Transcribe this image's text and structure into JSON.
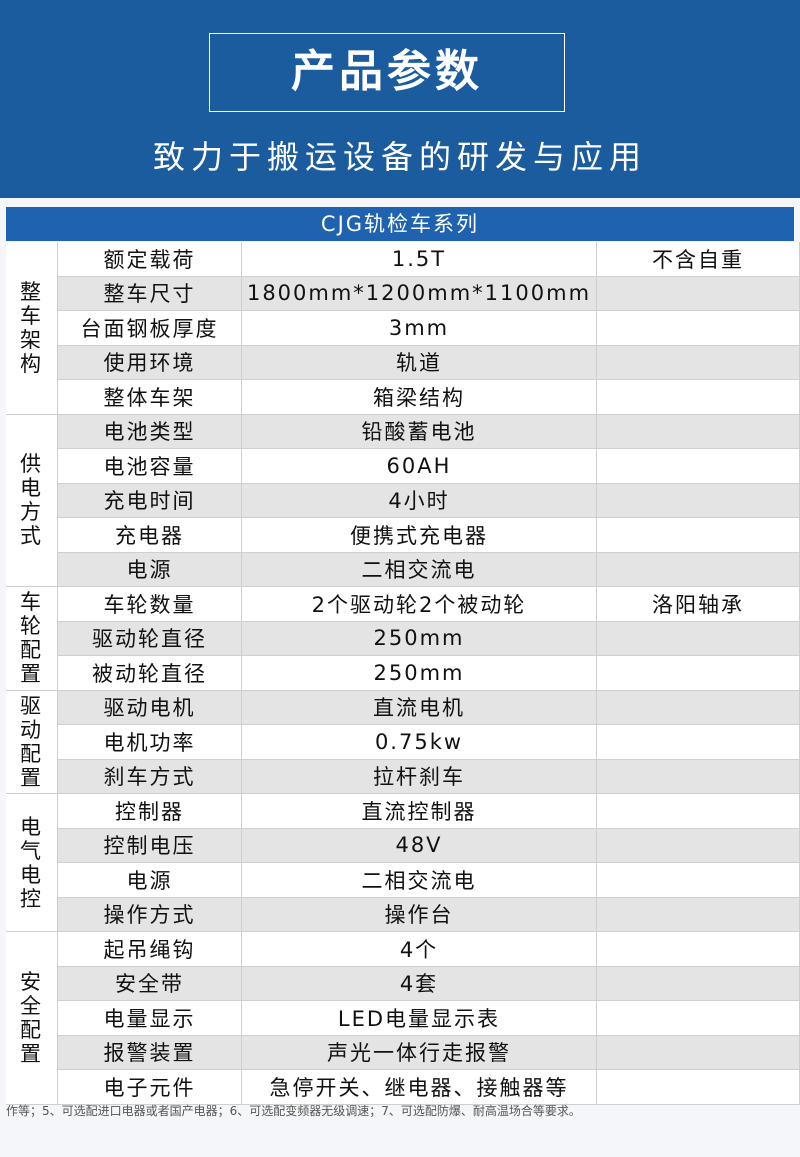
{
  "header": {
    "title": "产品参数",
    "subtitle": "致力于搬运设备的研发与应用"
  },
  "table": {
    "caption": "CJG轨检车系列",
    "groups": [
      {
        "name": "整车架构",
        "rows": [
          {
            "param": "额定载荷",
            "value": "1.5T",
            "note": "不含自重"
          },
          {
            "param": "整车尺寸",
            "value": "1800mm*1200mm*1100mm"
          },
          {
            "param": "台面钢板厚度",
            "value": "3mm"
          },
          {
            "param": "使用环境",
            "value": "轨道"
          },
          {
            "param": "整体车架",
            "value": "箱梁结构"
          }
        ]
      },
      {
        "name": "供电方式",
        "rows": [
          {
            "param": "电池类型",
            "value": "铅酸蓄电池"
          },
          {
            "param": "电池容量",
            "value": "60AH"
          },
          {
            "param": "充电时间",
            "value": "4小时"
          },
          {
            "param": "充电器",
            "value": "便携式充电器"
          },
          {
            "param": "电源",
            "value": "二相交流电"
          }
        ]
      },
      {
        "name": "车轮配置",
        "rows": [
          {
            "param": "车轮数量",
            "value": "2个驱动轮2个被动轮",
            "note": "洛阳轴承"
          },
          {
            "param": "驱动轮直径",
            "value": "250mm"
          },
          {
            "param": "被动轮直径",
            "value": "250mm"
          }
        ]
      },
      {
        "name": "驱动配置",
        "rows": [
          {
            "param": "驱动电机",
            "value": "直流电机"
          },
          {
            "param": "电机功率",
            "value": "0.75kw"
          },
          {
            "param": "刹车方式",
            "value": "拉杆刹车"
          }
        ]
      },
      {
        "name": "电气电控",
        "rows": [
          {
            "param": "控制器",
            "value": "直流控制器"
          },
          {
            "param": "控制电压",
            "value": "48V"
          },
          {
            "param": "电源",
            "value": "二相交流电"
          },
          {
            "param": "操作方式",
            "value": "操作台"
          }
        ]
      },
      {
        "name": "安全配置",
        "rows": [
          {
            "param": "起吊绳钩",
            "value": "4个"
          },
          {
            "param": "安全带",
            "value": "4套"
          },
          {
            "param": "电量显示",
            "value": "LED电量显示表"
          },
          {
            "param": "报警装置",
            "value": "声光一体行走报警"
          },
          {
            "param": "电子元件",
            "value": "急停开关、继电器、接触器等"
          }
        ]
      }
    ]
  },
  "footer": "作等；5、可选配进口电器或者国产电器；6、可选配变频器无级调速；7、可选配防爆、耐高温场合等要求。"
}
